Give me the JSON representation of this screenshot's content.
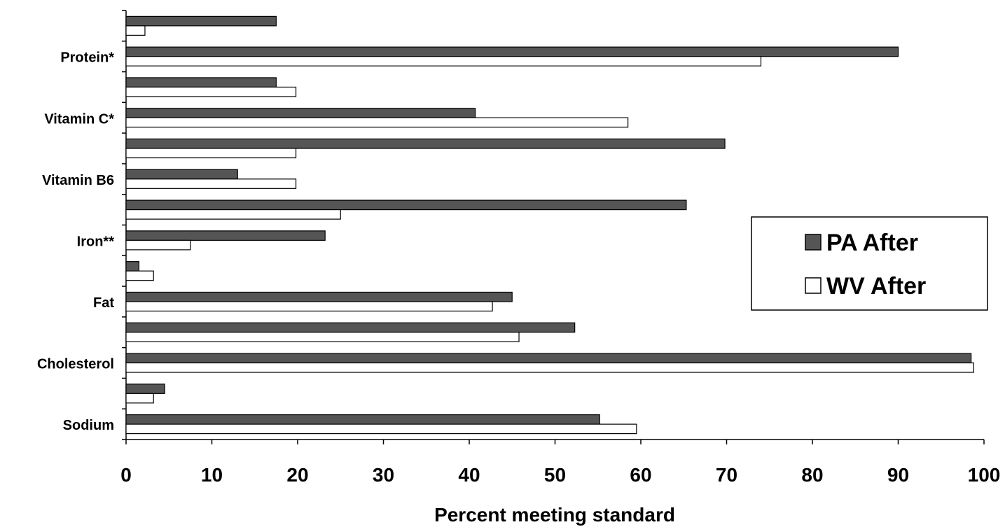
{
  "chart_data": {
    "type": "bar",
    "orientation": "horizontal",
    "xlabel": "Percent meeting standard",
    "ylabel": "",
    "xlim": [
      0,
      100
    ],
    "x_ticks": [
      0,
      10,
      20,
      30,
      40,
      50,
      60,
      70,
      80,
      90,
      100
    ],
    "grid": false,
    "legend_position": "right",
    "categories": [
      "",
      "Protein*",
      "",
      "Vitamin C*",
      "",
      "Vitamin B6",
      "",
      "Iron**",
      "",
      "Fat",
      "",
      "Cholesterol",
      "",
      "Sodium"
    ],
    "series": [
      {
        "name": "PA After",
        "color": "#555555",
        "values": [
          17.5,
          90,
          17.5,
          40.7,
          69.8,
          13,
          65.3,
          23.2,
          1.5,
          45,
          52.3,
          98.5,
          4.5,
          55.2
        ]
      },
      {
        "name": "WV After",
        "color": "#ffffff",
        "values": [
          2.2,
          74,
          19.8,
          58.5,
          19.8,
          19.8,
          25,
          7.5,
          3.2,
          42.7,
          45.8,
          98.8,
          3.2,
          59.5
        ]
      }
    ]
  }
}
